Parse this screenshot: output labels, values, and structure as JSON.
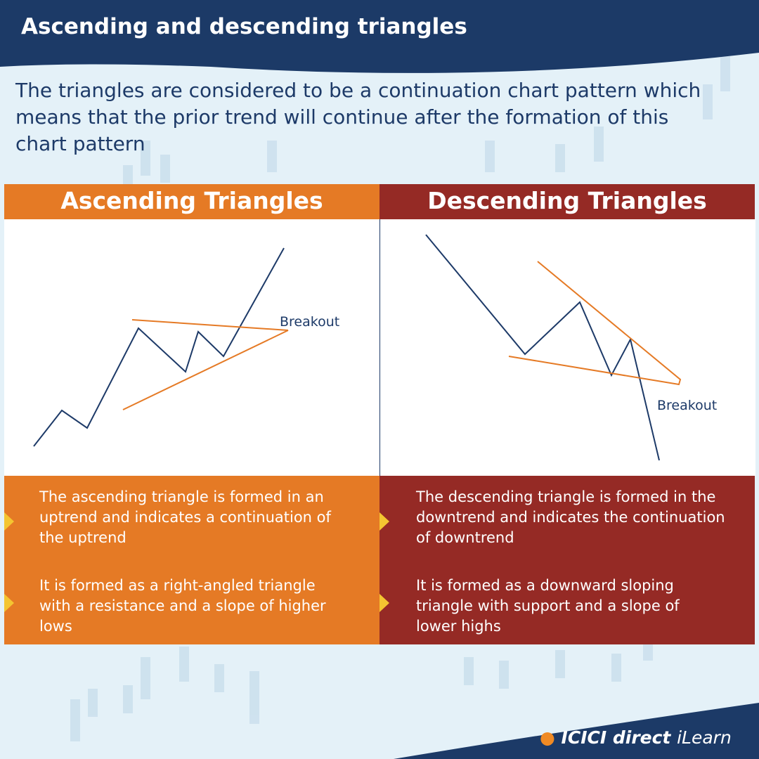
{
  "header": {
    "title": "Ascending and descending triangles"
  },
  "intro": "The triangles are considered to be a continuation chart pattern which means that the prior trend will continue after the formation of this chart pattern",
  "panels": [
    {
      "title": "Ascending Triangles",
      "breakout_label": "Breakout",
      "bullets": [
        "The ascending triangle is formed in an uptrend and indicates a continuation of the uptrend",
        "It is formed as a right-angled triangle with a resistance and a slope of higher lows"
      ]
    },
    {
      "title": "Descending Triangles",
      "breakout_label": "Breakout",
      "bullets": [
        "The descending triangle is formed in the downtrend and indicates the continuation of downtrend",
        "It is formed as a downward sloping triangle with support and a slope of lower highs"
      ]
    }
  ],
  "footer": {
    "brand": "ICICI direct",
    "product": "iLearn"
  }
}
